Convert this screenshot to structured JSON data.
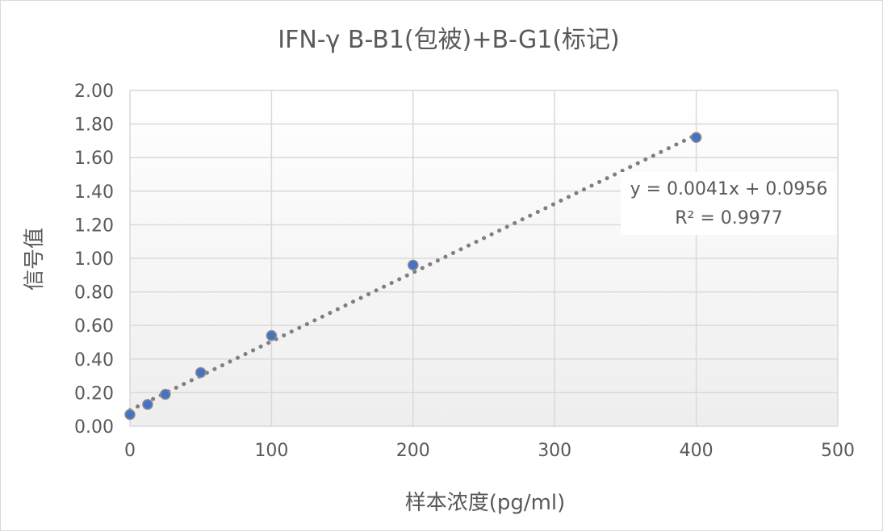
{
  "chart_data": {
    "type": "scatter",
    "title": "IFN-γ B-B1(包被)+B-G1(标记)",
    "xlabel": "样本浓度(pg/ml)",
    "ylabel": "信号值",
    "xlim": [
      0,
      500
    ],
    "ylim": [
      0,
      2
    ],
    "x_ticks": [
      "0",
      "100",
      "200",
      "300",
      "400",
      "500"
    ],
    "y_ticks": [
      "0.00",
      "0.20",
      "0.40",
      "0.60",
      "0.80",
      "1.00",
      "1.20",
      "1.40",
      "1.60",
      "1.80",
      "2.00"
    ],
    "grid": true,
    "points": [
      {
        "x": 0,
        "y": 0.07
      },
      {
        "x": 12.5,
        "y": 0.13
      },
      {
        "x": 25,
        "y": 0.19
      },
      {
        "x": 50,
        "y": 0.32
      },
      {
        "x": 100,
        "y": 0.54
      },
      {
        "x": 200,
        "y": 0.96
      },
      {
        "x": 400,
        "y": 1.72
      }
    ],
    "trendline": {
      "type": "linear",
      "slope": 0.0041,
      "intercept": 0.0956,
      "style": "dotted",
      "equation_label": "y = 0.0041x + 0.0956",
      "r2_label": "R² = 0.9977"
    },
    "colors": {
      "marker_fill": "#4472c4",
      "marker_stroke": "#8c8c8c",
      "trendline": "#7f7f7f",
      "grid": "#d9d9d9",
      "text": "#595959"
    }
  }
}
